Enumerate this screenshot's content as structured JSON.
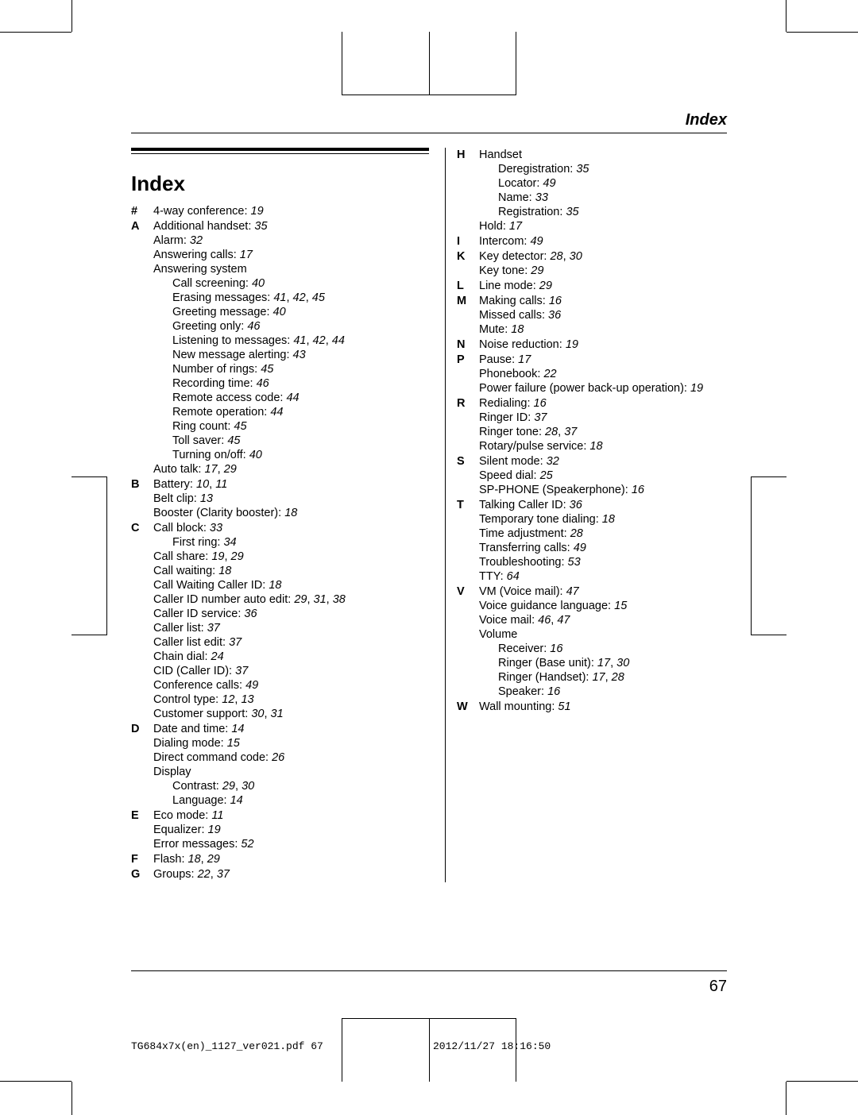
{
  "header": {
    "title": "Index"
  },
  "heading": "Index",
  "left_groups": [
    {
      "letter": "#",
      "entries": [
        {
          "text": "4-way conference:",
          "pages": "19"
        }
      ]
    },
    {
      "letter": "A",
      "entries": [
        {
          "text": "Additional handset:",
          "pages": "35"
        },
        {
          "text": "Alarm:",
          "pages": "32"
        },
        {
          "text": "Answering calls:",
          "pages": "17"
        },
        {
          "text": "Answering system",
          "pages": ""
        },
        {
          "text": "Call screening:",
          "pages": "40",
          "level": 1
        },
        {
          "text": "Erasing messages:",
          "pages": "41, 42, 45",
          "level": 1
        },
        {
          "text": "Greeting message:",
          "pages": "40",
          "level": 1
        },
        {
          "text": "Greeting only:",
          "pages": "46",
          "level": 1
        },
        {
          "text": "Listening to messages:",
          "pages": "41, 42, 44",
          "level": 1
        },
        {
          "text": "New message alerting:",
          "pages": "43",
          "level": 1
        },
        {
          "text": "Number of rings:",
          "pages": "45",
          "level": 1
        },
        {
          "text": "Recording time:",
          "pages": "46",
          "level": 1
        },
        {
          "text": "Remote access code:",
          "pages": "44",
          "level": 1
        },
        {
          "text": "Remote operation:",
          "pages": "44",
          "level": 1
        },
        {
          "text": "Ring count:",
          "pages": "45",
          "level": 1
        },
        {
          "text": "Toll saver:",
          "pages": "45",
          "level": 1
        },
        {
          "text": "Turning on/off:",
          "pages": "40",
          "level": 1
        },
        {
          "text": "Auto talk:",
          "pages": "17, 29"
        }
      ]
    },
    {
      "letter": "B",
      "entries": [
        {
          "text": "Battery:",
          "pages": "10, 11"
        },
        {
          "text": "Belt clip:",
          "pages": "13"
        },
        {
          "text": "Booster (Clarity booster):",
          "pages": "18"
        }
      ]
    },
    {
      "letter": "C",
      "entries": [
        {
          "text": "Call block:",
          "pages": "33"
        },
        {
          "text": "First ring:",
          "pages": "34",
          "level": 1
        },
        {
          "text": "Call share:",
          "pages": "19, 29"
        },
        {
          "text": "Call waiting:",
          "pages": "18"
        },
        {
          "text": "Call Waiting Caller ID:",
          "pages": "18"
        },
        {
          "text": "Caller ID number auto edit:",
          "pages": "29, 31, 38"
        },
        {
          "text": "Caller ID service:",
          "pages": "36"
        },
        {
          "text": "Caller list:",
          "pages": "37"
        },
        {
          "text": "Caller list edit:",
          "pages": "37"
        },
        {
          "text": "Chain dial:",
          "pages": "24"
        },
        {
          "text": "CID (Caller ID):",
          "pages": "37"
        },
        {
          "text": "Conference calls:",
          "pages": "49"
        },
        {
          "text": "Control type:",
          "pages": "12, 13"
        },
        {
          "text": "Customer support:",
          "pages": "30, 31"
        }
      ]
    },
    {
      "letter": "D",
      "entries": [
        {
          "text": "Date and time:",
          "pages": "14"
        },
        {
          "text": "Dialing mode:",
          "pages": "15"
        },
        {
          "text": "Direct command code:",
          "pages": "26"
        },
        {
          "text": "Display",
          "pages": ""
        },
        {
          "text": "Contrast:",
          "pages": "29, 30",
          "level": 1
        },
        {
          "text": "Language:",
          "pages": "14",
          "level": 1
        }
      ]
    },
    {
      "letter": "E",
      "entries": [
        {
          "text": "Eco mode:",
          "pages": "11"
        },
        {
          "text": "Equalizer:",
          "pages": "19"
        },
        {
          "text": "Error messages:",
          "pages": "52"
        }
      ]
    },
    {
      "letter": "F",
      "entries": [
        {
          "text": "Flash:",
          "pages": "18, 29"
        }
      ]
    },
    {
      "letter": "G",
      "entries": [
        {
          "text": "Groups:",
          "pages": "22, 37"
        }
      ]
    }
  ],
  "right_groups": [
    {
      "letter": "H",
      "entries": [
        {
          "text": "Handset",
          "pages": ""
        },
        {
          "text": "Deregistration:",
          "pages": "35",
          "level": 1
        },
        {
          "text": "Locator:",
          "pages": "49",
          "level": 1
        },
        {
          "text": "Name:",
          "pages": "33",
          "level": 1
        },
        {
          "text": "Registration:",
          "pages": "35",
          "level": 1
        },
        {
          "text": "Hold:",
          "pages": "17"
        }
      ]
    },
    {
      "letter": "I",
      "entries": [
        {
          "text": "Intercom:",
          "pages": "49"
        }
      ]
    },
    {
      "letter": "K",
      "entries": [
        {
          "text": "Key detector:",
          "pages": "28, 30"
        },
        {
          "text": "Key tone:",
          "pages": "29"
        }
      ]
    },
    {
      "letter": "L",
      "entries": [
        {
          "text": "Line mode:",
          "pages": "29"
        }
      ]
    },
    {
      "letter": "M",
      "entries": [
        {
          "text": "Making calls:",
          "pages": "16"
        },
        {
          "text": "Missed calls:",
          "pages": "36"
        },
        {
          "text": "Mute:",
          "pages": "18"
        }
      ]
    },
    {
      "letter": "N",
      "entries": [
        {
          "text": "Noise reduction:",
          "pages": "19"
        }
      ]
    },
    {
      "letter": "P",
      "entries": [
        {
          "text": "Pause:",
          "pages": "17"
        },
        {
          "text": "Phonebook:",
          "pages": "22"
        },
        {
          "text": "Power failure (power back-up operation):",
          "pages": "19"
        }
      ]
    },
    {
      "letter": "R",
      "entries": [
        {
          "text": "Redialing:",
          "pages": "16"
        },
        {
          "text": "Ringer ID:",
          "pages": "37"
        },
        {
          "text": "Ringer tone:",
          "pages": "28, 37"
        },
        {
          "text": "Rotary/pulse service:",
          "pages": "18"
        }
      ]
    },
    {
      "letter": "S",
      "entries": [
        {
          "text": "Silent mode:",
          "pages": "32"
        },
        {
          "text": "Speed dial:",
          "pages": "25"
        },
        {
          "text": "SP-PHONE (Speakerphone):",
          "pages": "16"
        }
      ]
    },
    {
      "letter": "T",
      "entries": [
        {
          "text": "Talking Caller ID:",
          "pages": "36"
        },
        {
          "text": "Temporary tone dialing:",
          "pages": "18"
        },
        {
          "text": "Time adjustment:",
          "pages": "28"
        },
        {
          "text": "Transferring calls:",
          "pages": "49"
        },
        {
          "text": "Troubleshooting:",
          "pages": "53"
        },
        {
          "text": "TTY:",
          "pages": "64"
        }
      ]
    },
    {
      "letter": "V",
      "entries": [
        {
          "text": "VM (Voice mail):",
          "pages": "47"
        },
        {
          "text": "Voice guidance language:",
          "pages": "15"
        },
        {
          "text": "Voice mail:",
          "pages": "46, 47"
        },
        {
          "text": "Volume",
          "pages": ""
        },
        {
          "text": "Receiver:",
          "pages": "16",
          "level": 1
        },
        {
          "text": "Ringer (Base unit):",
          "pages": "17, 30",
          "level": 1
        },
        {
          "text": "Ringer (Handset):",
          "pages": "17, 28",
          "level": 1
        },
        {
          "text": "Speaker:",
          "pages": "16",
          "level": 1
        }
      ]
    },
    {
      "letter": "W",
      "entries": [
        {
          "text": "Wall mounting:",
          "pages": "51"
        }
      ]
    }
  ],
  "footer": {
    "page_num": "67"
  },
  "print": {
    "file": "TG684x7x(en)_1127_ver021.pdf   67",
    "timestamp": "2012/11/27   18:16:50"
  }
}
